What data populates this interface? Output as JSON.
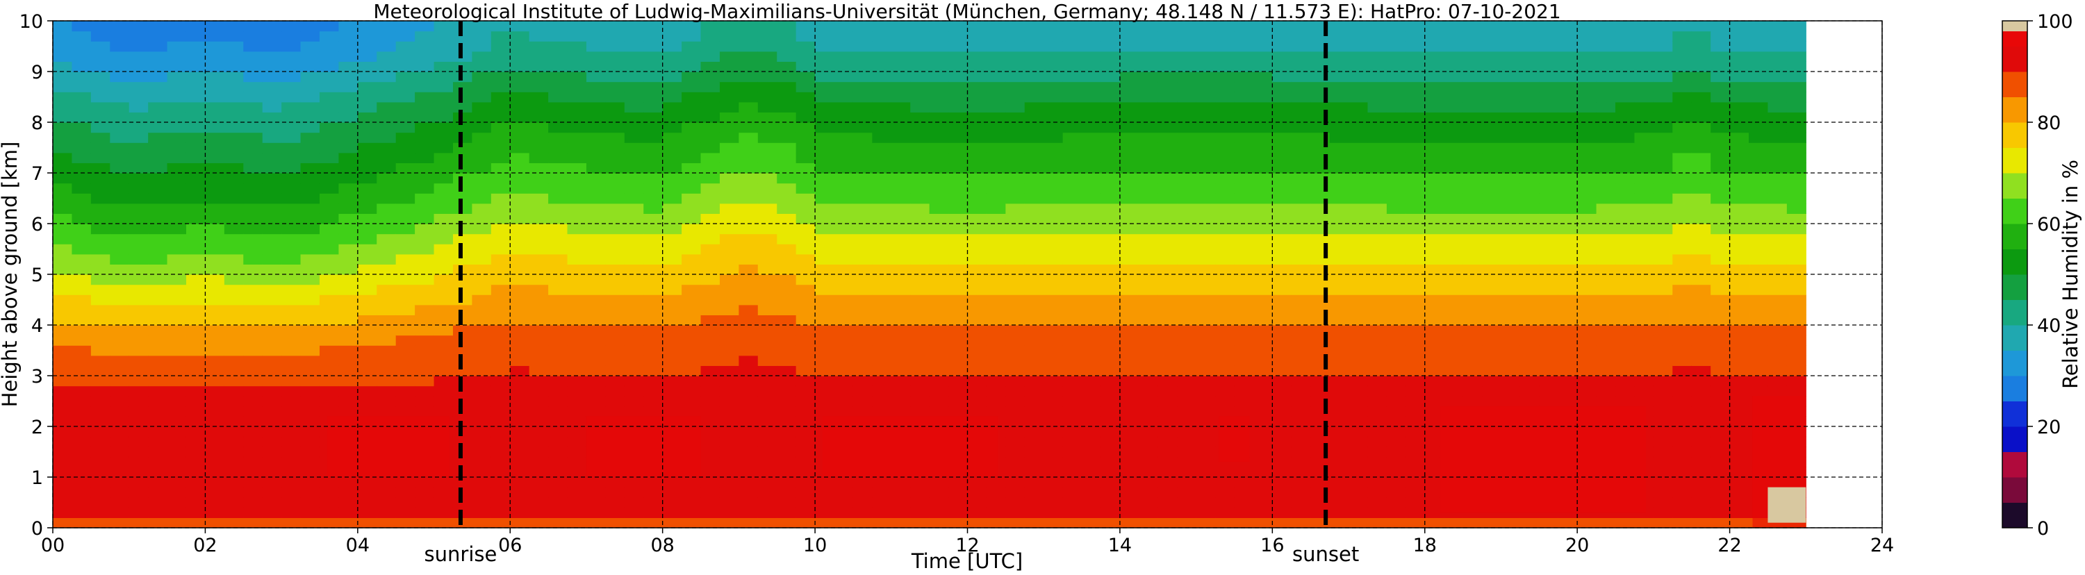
{
  "chart_data": {
    "type": "heatmap",
    "title": "Meteorological Institute of Ludwig-Maximilians-Universität (München, Germany; 48.148 N / 11.573 E):    HatPro: 07-10-2021",
    "xlabel": "Time [UTC]",
    "ylabel": "Height above ground [km]",
    "xlim": [
      0,
      24
    ],
    "ylim": [
      0,
      10
    ],
    "data_end_time": 23,
    "x_ticks": [
      "00",
      "02",
      "04",
      "06",
      "08",
      "10",
      "12",
      "14",
      "16",
      "18",
      "20",
      "22",
      "24"
    ],
    "y_ticks": [
      "0",
      "1",
      "2",
      "3",
      "4",
      "5",
      "6",
      "7",
      "8",
      "9",
      "10"
    ],
    "grid": true,
    "events": [
      {
        "label": "sunrise",
        "time": 5.35
      },
      {
        "label": "sunset",
        "time": 16.7
      }
    ],
    "colorbar": {
      "label": "Relative Humidity in %",
      "range": [
        0,
        100
      ],
      "ticks": [
        "0",
        "20",
        "40",
        "60",
        "80",
        "100"
      ],
      "segments": [
        {
          "from": 0,
          "to": 5,
          "color": "#1c0a2a"
        },
        {
          "from": 5,
          "to": 10,
          "color": "#7a0a3a"
        },
        {
          "from": 10,
          "to": 15,
          "color": "#b00a3c"
        },
        {
          "from": 15,
          "to": 20,
          "color": "#0a10c8"
        },
        {
          "from": 20,
          "to": 25,
          "color": "#1030d8"
        },
        {
          "from": 25,
          "to": 30,
          "color": "#1a7ee0"
        },
        {
          "from": 30,
          "to": 35,
          "color": "#1e98d8"
        },
        {
          "from": 35,
          "to": 40,
          "color": "#20a8b0"
        },
        {
          "from": 40,
          "to": 45,
          "color": "#18a880"
        },
        {
          "from": 45,
          "to": 50,
          "color": "#14a040"
        },
        {
          "from": 50,
          "to": 55,
          "color": "#0c9a10"
        },
        {
          "from": 55,
          "to": 60,
          "color": "#20b010"
        },
        {
          "from": 60,
          "to": 65,
          "color": "#40d018"
        },
        {
          "from": 65,
          "to": 70,
          "color": "#90e020"
        },
        {
          "from": 70,
          "to": 75,
          "color": "#e8e800"
        },
        {
          "from": 75,
          "to": 80,
          "color": "#f8c800"
        },
        {
          "from": 80,
          "to": 85,
          "color": "#f89800"
        },
        {
          "from": 85,
          "to": 90,
          "color": "#f05000"
        },
        {
          "from": 90,
          "to": 95,
          "color": "#e00a0a"
        },
        {
          "from": 95,
          "to": 98,
          "color": "#e80808"
        },
        {
          "from": 98,
          "to": 100,
          "color": "#d8c8a0"
        }
      ]
    },
    "humidity_profile": [
      {
        "h": 0.0,
        "rh": 84
      },
      {
        "h": 0.15,
        "rh": 92
      },
      {
        "h": 0.5,
        "rh": 93
      },
      {
        "h": 1.0,
        "rh": 94
      },
      {
        "h": 2.0,
        "rh": 93
      },
      {
        "h": 3.0,
        "rh": 90
      },
      {
        "h": 3.8,
        "rh": 86
      },
      {
        "h": 4.5,
        "rh": 80
      },
      {
        "h": 5.5,
        "rh": 72
      },
      {
        "h": 6.5,
        "rh": 63
      },
      {
        "h": 7.5,
        "rh": 56
      },
      {
        "h": 8.5,
        "rh": 48
      },
      {
        "h": 9.3,
        "rh": 40
      },
      {
        "h": 10.0,
        "rh": 36
      }
    ],
    "period_offsets": [
      {
        "t": 0,
        "offset": -6
      },
      {
        "t": 1,
        "offset": -10
      },
      {
        "t": 2,
        "offset": -8
      },
      {
        "t": 3,
        "offset": -10
      },
      {
        "t": 4,
        "offset": -6
      },
      {
        "t": 5,
        "offset": -2
      },
      {
        "t": 6,
        "offset": 3
      },
      {
        "t": 7,
        "offset": 1
      },
      {
        "t": 8,
        "offset": 0
      },
      {
        "t": 9,
        "offset": 6
      },
      {
        "t": 9.6,
        "offset": 5
      },
      {
        "t": 10,
        "offset": 1
      },
      {
        "t": 12,
        "offset": 0
      },
      {
        "t": 14,
        "offset": 1
      },
      {
        "t": 16,
        "offset": 1
      },
      {
        "t": 18,
        "offset": 0
      },
      {
        "t": 20,
        "offset": 0
      },
      {
        "t": 21.3,
        "offset": 1
      },
      {
        "t": 21.5,
        "offset": 6
      },
      {
        "t": 21.7,
        "offset": 1
      },
      {
        "t": 23,
        "offset": 0
      }
    ],
    "saturated_patches": [
      {
        "t0": 3.6,
        "t1": 5.2,
        "h0": 1.0,
        "h1": 2.2,
        "rh": 97
      },
      {
        "t0": 7.0,
        "t1": 8.5,
        "h0": 1.0,
        "h1": 2.2,
        "rh": 97
      },
      {
        "t0": 10.1,
        "t1": 12.4,
        "h0": 1.0,
        "h1": 2.2,
        "rh": 97
      },
      {
        "t0": 15.3,
        "t1": 15.7,
        "h0": 1.3,
        "h1": 2.2,
        "rh": 97
      },
      {
        "t0": 18.2,
        "t1": 20.9,
        "h0": 0.3,
        "h1": 2.4,
        "rh": 97
      },
      {
        "t0": 22.3,
        "t1": 23.0,
        "h0": 0.0,
        "h1": 2.6,
        "rh": 97
      },
      {
        "t0": 22.5,
        "t1": 23.0,
        "h0": 0.1,
        "h1": 0.8,
        "rh": 99
      }
    ]
  }
}
